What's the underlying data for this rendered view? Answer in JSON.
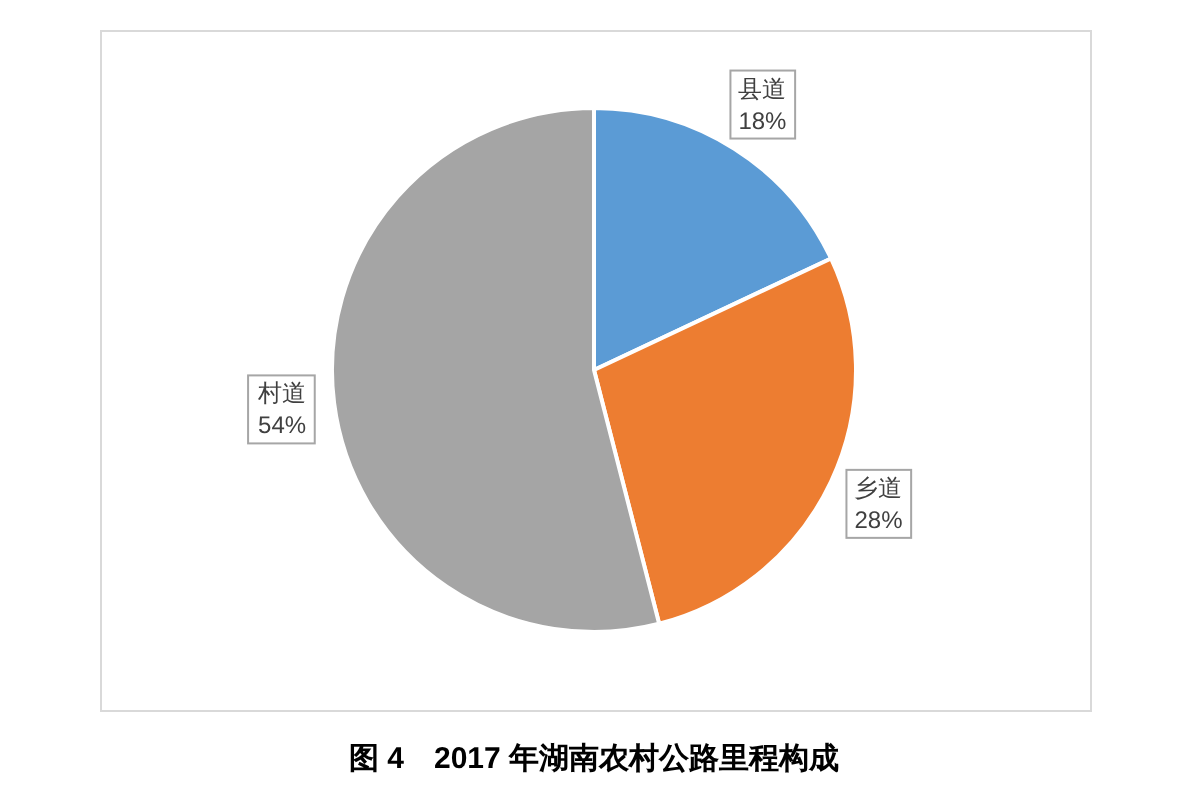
{
  "chart_data": {
    "type": "pie",
    "title": "图 4　2017 年湖南农村公路里程构成",
    "categories": [
      "县道",
      "乡道",
      "村道"
    ],
    "values": [
      18,
      28,
      54
    ],
    "colors": [
      "#5b9bd5",
      "#ed7d31",
      "#a5a5a5"
    ],
    "value_labels": [
      "18%",
      "28%",
      "54%"
    ],
    "legend": false
  }
}
